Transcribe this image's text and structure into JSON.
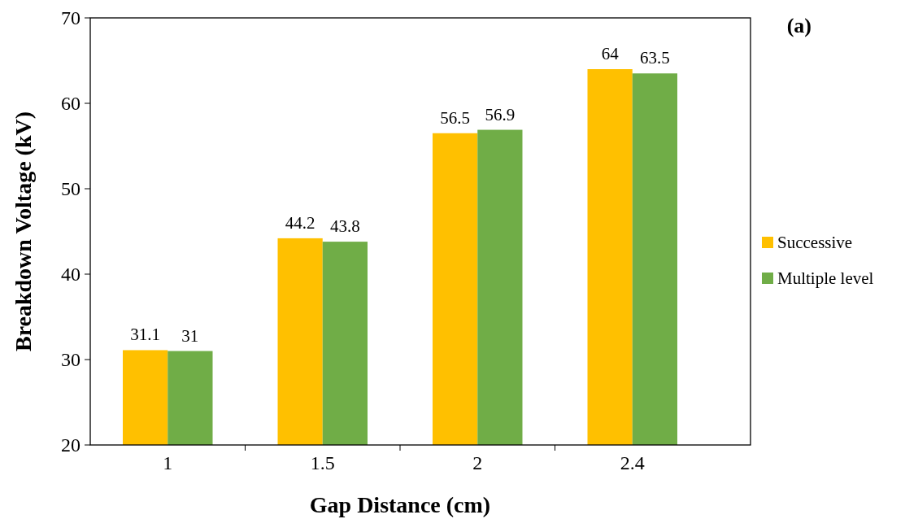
{
  "chart_data": {
    "type": "bar",
    "xlabel": "Gap Distance (cm)",
    "ylabel": "Breakdown Voltage (kV)",
    "annotations": [
      "(a)"
    ],
    "categories": [
      "1",
      "1.5",
      "2",
      "2.4"
    ],
    "series": [
      {
        "name": "Successive",
        "color": "#ffc000",
        "values": [
          31.1,
          44.2,
          56.5,
          64
        ]
      },
      {
        "name": "Multiple level",
        "color": "#70ad47",
        "values": [
          31,
          43.8,
          56.9,
          63.5
        ]
      }
    ],
    "ylim": [
      20,
      70
    ],
    "yticks": [
      20,
      30,
      40,
      50,
      60,
      70
    ],
    "data_labels": true,
    "legend": "right",
    "grid": false
  }
}
